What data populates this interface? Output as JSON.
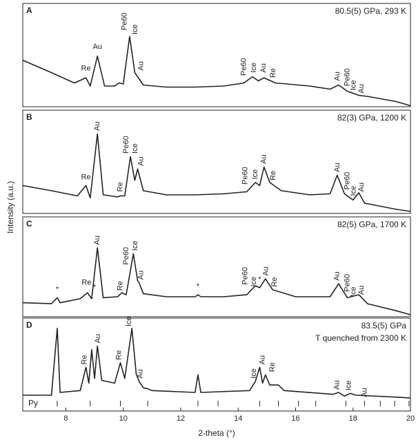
{
  "chart_data": [
    {
      "type": "line",
      "panel": "A",
      "conditions": [
        "80.5(5) GPa, 293 K"
      ],
      "color": "#222222",
      "xlim": [
        6.5,
        20
      ],
      "ylim": [
        0,
        100
      ],
      "x": [
        6.5,
        7.5,
        8.3,
        8.7,
        8.85,
        9.1,
        9.35,
        9.7,
        9.85,
        10.0,
        10.22,
        10.4,
        10.5,
        10.7,
        11.5,
        12.5,
        13.5,
        14.2,
        14.5,
        14.7,
        14.9,
        15.3,
        16.5,
        17.2,
        17.5,
        17.8,
        18.2,
        18.5,
        19.5,
        20
      ],
      "values": [
        45,
        33,
        23,
        28,
        20,
        49,
        20,
        20,
        23,
        22,
        68,
        33,
        29,
        21,
        19,
        19,
        20,
        23,
        29,
        25,
        28,
        23,
        20,
        17,
        21,
        15,
        11,
        10,
        5,
        1
      ],
      "annotations": [
        {
          "text": "Re",
          "x": 8.7,
          "y": 33,
          "vertical": false
        },
        {
          "text": "Au",
          "x": 9.1,
          "y": 54,
          "vertical": false
        },
        {
          "text": "Pe60",
          "x": 10.05,
          "y": 74,
          "vertical": true
        },
        {
          "text": "Ice",
          "x": 10.42,
          "y": 70,
          "vertical": true
        },
        {
          "text": "Au",
          "x": 10.62,
          "y": 35,
          "vertical": true
        },
        {
          "text": "Pe60",
          "x": 14.2,
          "y": 30,
          "vertical": true
        },
        {
          "text": "Ice",
          "x": 14.55,
          "y": 33,
          "vertical": true
        },
        {
          "text": "Au",
          "x": 14.88,
          "y": 33,
          "vertical": true
        },
        {
          "text": "Re",
          "x": 15.22,
          "y": 28,
          "vertical": true
        },
        {
          "text": "Au",
          "x": 17.45,
          "y": 25,
          "vertical": true
        },
        {
          "text": "Pe60",
          "x": 17.8,
          "y": 20,
          "vertical": true
        },
        {
          "text": "Ice",
          "x": 18.02,
          "y": 16,
          "vertical": true
        },
        {
          "text": "Au",
          "x": 18.3,
          "y": 13,
          "vertical": true
        }
      ]
    },
    {
      "type": "line",
      "panel": "B",
      "conditions": [
        "82(3) GPa, 1200 K"
      ],
      "color": "#222222",
      "xlim": [
        6.5,
        20
      ],
      "ylim": [
        0,
        100
      ],
      "x": [
        6.5,
        7.5,
        8.4,
        8.7,
        8.85,
        9.1,
        9.3,
        9.8,
        9.9,
        10.05,
        10.25,
        10.4,
        10.5,
        10.7,
        11.5,
        12.5,
        13.5,
        14.3,
        14.6,
        14.75,
        14.9,
        15.1,
        15.5,
        16.5,
        17.2,
        17.45,
        17.7,
        18.0,
        18.2,
        18.4,
        19.5,
        20
      ],
      "values": [
        27,
        22,
        17,
        27,
        15,
        77,
        18,
        16,
        17,
        17,
        55,
        32,
        43,
        22,
        18,
        18,
        19,
        21,
        30,
        27,
        45,
        30,
        22,
        18,
        19,
        37,
        19,
        13,
        20,
        10,
        4,
        2
      ],
      "annotations": [
        {
          "text": "Re",
          "x": 8.7,
          "y": 31,
          "vertical": false
        },
        {
          "text": "Au",
          "x": 9.1,
          "y": 80,
          "vertical": true
        },
        {
          "text": "Re",
          "x": 9.9,
          "y": 21,
          "vertical": true
        },
        {
          "text": "Pe60",
          "x": 10.1,
          "y": 58,
          "vertical": true
        },
        {
          "text": "Ice",
          "x": 10.42,
          "y": 58,
          "vertical": true
        },
        {
          "text": "Au",
          "x": 10.62,
          "y": 46,
          "vertical": true
        },
        {
          "text": "Pe60",
          "x": 14.25,
          "y": 28,
          "vertical": true
        },
        {
          "text": "Ice",
          "x": 14.6,
          "y": 33,
          "vertical": true
        },
        {
          "text": "Au",
          "x": 14.9,
          "y": 48,
          "vertical": true
        },
        {
          "text": "Re",
          "x": 15.22,
          "y": 32,
          "vertical": true
        },
        {
          "text": "Au",
          "x": 17.45,
          "y": 40,
          "vertical": true
        },
        {
          "text": "Pe60",
          "x": 17.8,
          "y": 23,
          "vertical": true
        },
        {
          "text": "Ice",
          "x": 18.02,
          "y": 17,
          "vertical": true
        },
        {
          "text": "Au",
          "x": 18.3,
          "y": 21,
          "vertical": true
        }
      ]
    },
    {
      "type": "line",
      "panel": "C",
      "conditions": [
        "82(5) GPa, 1700 K"
      ],
      "color": "#222222",
      "xlim": [
        6.5,
        20
      ],
      "ylim": [
        0,
        100
      ],
      "x": [
        6.5,
        7.5,
        7.7,
        7.8,
        8.5,
        8.75,
        8.9,
        9.1,
        9.3,
        9.8,
        9.95,
        10.1,
        10.35,
        10.5,
        10.55,
        10.7,
        11.5,
        12.5,
        12.6,
        12.7,
        13.5,
        14.3,
        14.6,
        14.75,
        14.95,
        15.2,
        16.0,
        17.2,
        17.5,
        17.8,
        18.2,
        18.5,
        19.5,
        20
      ],
      "values": [
        14,
        13,
        19,
        14,
        18,
        24,
        18,
        69,
        19,
        20,
        24,
        22,
        63,
        36,
        34,
        23,
        20,
        20,
        22,
        20,
        20,
        22,
        31,
        29,
        38,
        27,
        20,
        20,
        33,
        19,
        22,
        13,
        6,
        2
      ],
      "annotations": [
        {
          "text": "*",
          "x": 7.7,
          "y": 23,
          "vertical": false
        },
        {
          "text": "Re",
          "x": 8.72,
          "y": 30,
          "vertical": false
        },
        {
          "text": "*",
          "x": 9.0,
          "y": 25,
          "vertical": false
        },
        {
          "text": "Au",
          "x": 9.1,
          "y": 72,
          "vertical": true
        },
        {
          "text": "Re",
          "x": 9.9,
          "y": 26,
          "vertical": true
        },
        {
          "text": "Pe60",
          "x": 10.1,
          "y": 52,
          "vertical": true
        },
        {
          "text": "Ice",
          "x": 10.42,
          "y": 66,
          "vertical": true
        },
        {
          "text": "Au",
          "x": 10.62,
          "y": 37,
          "vertical": true
        },
        {
          "text": "*",
          "x": 12.6,
          "y": 26,
          "vertical": false
        },
        {
          "text": "Pe60",
          "x": 14.25,
          "y": 32,
          "vertical": true
        },
        {
          "text": "Ice",
          "x": 14.55,
          "y": 30,
          "vertical": true
        },
        {
          "text": "*",
          "x": 14.75,
          "y": 33,
          "vertical": false
        },
        {
          "text": "Au",
          "x": 14.97,
          "y": 41,
          "vertical": true
        },
        {
          "text": "Re",
          "x": 15.27,
          "y": 30,
          "vertical": true
        },
        {
          "text": "Au",
          "x": 17.45,
          "y": 36,
          "vertical": true
        },
        {
          "text": "Pe60",
          "x": 17.8,
          "y": 25,
          "vertical": true
        },
        {
          "text": "Ice",
          "x": 18.02,
          "y": 20,
          "vertical": true
        },
        {
          "text": "Au",
          "x": 18.3,
          "y": 22,
          "vertical": true
        }
      ]
    },
    {
      "type": "line",
      "panel": "D",
      "conditions": [
        "83.5(5) GPa",
        "T quenched from 2300 K"
      ],
      "color": "#222222",
      "xlim": [
        6.5,
        20
      ],
      "ylim": [
        0,
        100
      ],
      "xticks": [
        8,
        10,
        12,
        14,
        16,
        18,
        20
      ],
      "xlabel": "2-theta (°)",
      "ylabel": "Intensity (a.u.)",
      "x": [
        6.5,
        7.5,
        7.7,
        7.8,
        8.5,
        8.7,
        8.8,
        8.9,
        9.0,
        9.1,
        9.25,
        9.7,
        9.9,
        10.05,
        10.3,
        10.45,
        10.55,
        10.7,
        10.85,
        11.0,
        12.5,
        12.6,
        12.7,
        14.4,
        14.6,
        14.75,
        14.85,
        14.95,
        15.1,
        15.4,
        15.6,
        17.3,
        17.5,
        17.7,
        17.9,
        18.1,
        19.5,
        20
      ],
      "values": [
        17,
        17,
        89,
        20,
        22,
        47,
        30,
        66,
        35,
        70,
        33,
        30,
        52,
        35,
        89,
        40,
        32,
        25,
        24,
        22,
        20,
        39,
        20,
        22,
        32,
        47,
        30,
        39,
        28,
        28,
        22,
        18,
        20,
        16,
        19,
        17,
        15,
        14
      ],
      "reference": {
        "name": "Py",
        "x": [
          7.7,
          8.85,
          9.9,
          10.85,
          12.6,
          13.3,
          14.75,
          15.4,
          16.1,
          16.7,
          17.75,
          18.4,
          18.95,
          19.45,
          19.95
        ]
      },
      "annotations": [
        {
          "text": "Re",
          "x": 8.65,
          "y": 50,
          "vertical": true
        },
        {
          "text": "Au",
          "x": 9.12,
          "y": 73,
          "vertical": true
        },
        {
          "text": "Re",
          "x": 9.85,
          "y": 55,
          "vertical": true
        },
        {
          "text": "Ice",
          "x": 10.2,
          "y": 91,
          "vertical": true
        },
        {
          "text": "Au",
          "x": 10.6,
          "y": 35,
          "vertical": true
        },
        {
          "text": "Ice",
          "x": 14.55,
          "y": 35,
          "vertical": true
        },
        {
          "text": "Au",
          "x": 14.85,
          "y": 50,
          "vertical": true
        },
        {
          "text": "Re",
          "x": 15.2,
          "y": 42,
          "vertical": true
        },
        {
          "text": "Au",
          "x": 17.45,
          "y": 23,
          "vertical": true
        },
        {
          "text": "Ice",
          "x": 17.85,
          "y": 22,
          "vertical": true
        },
        {
          "text": "Au",
          "x": 18.4,
          "y": 15,
          "vertical": true
        }
      ]
    }
  ]
}
